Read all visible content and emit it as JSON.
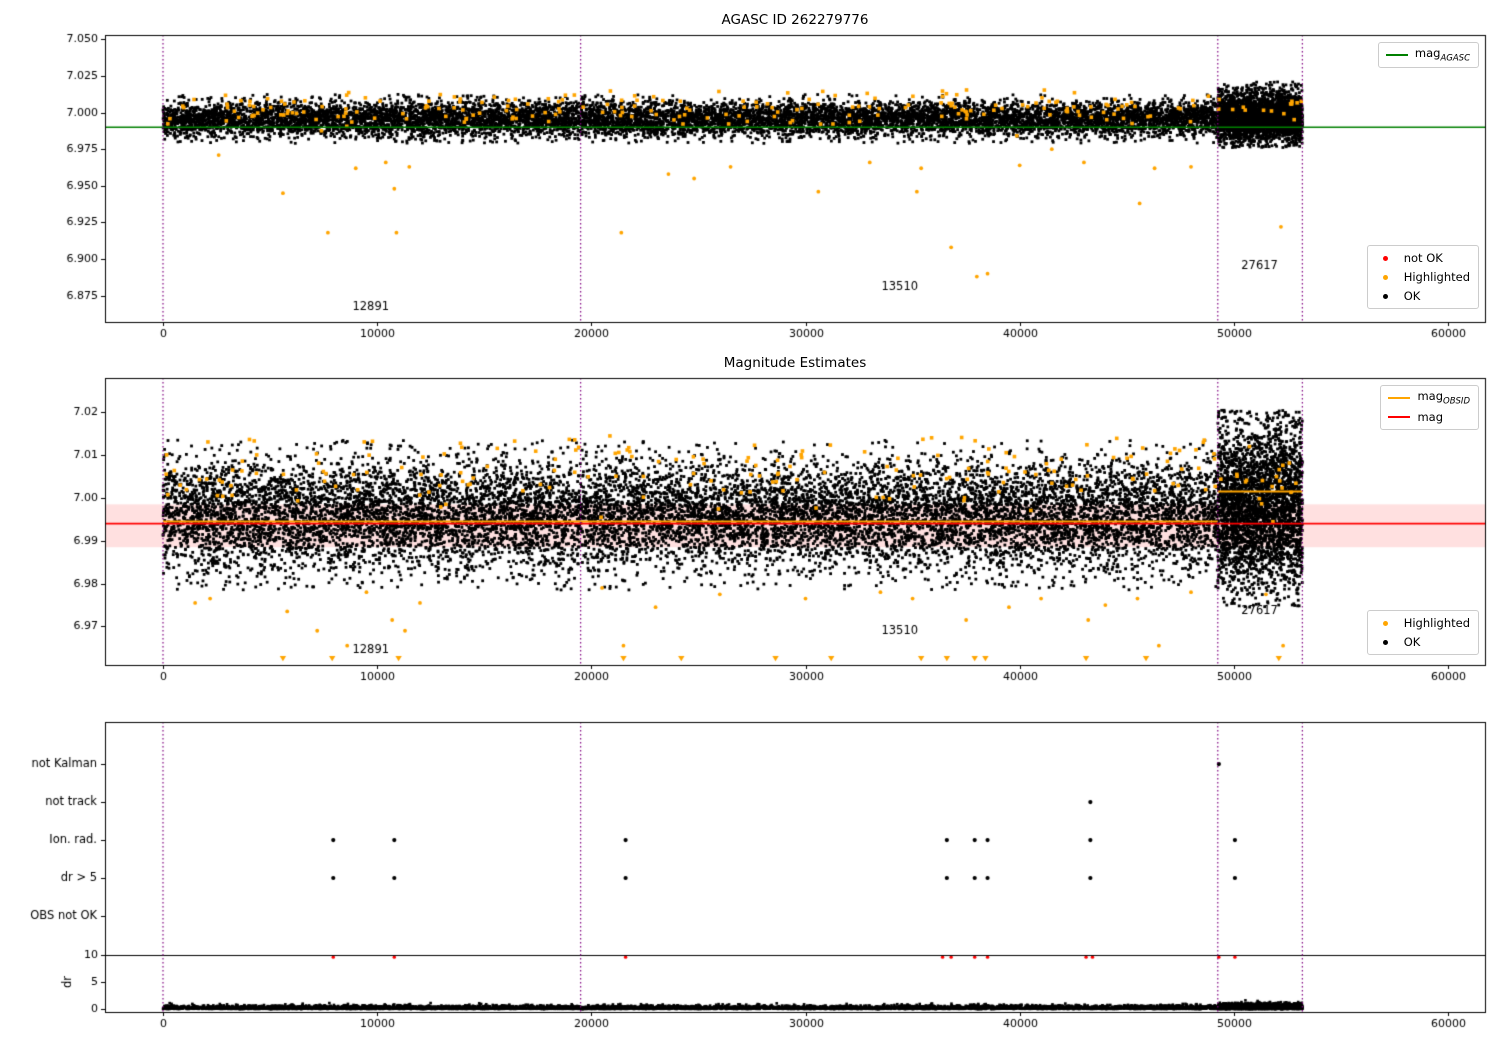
{
  "page": {
    "background": "#ffffff"
  },
  "chart_data": [
    {
      "type": "scatter",
      "title": "AGASC ID 262279776",
      "xlim": [
        -2708,
        61727
      ],
      "ylim": [
        6.857,
        7.053
      ],
      "xticks": [
        0,
        10000,
        20000,
        30000,
        40000,
        50000,
        60000
      ],
      "xtick_labels": [
        "0",
        "10000",
        "20000",
        "30000",
        "40000",
        "50000",
        "60000"
      ],
      "yticks": [
        7.05,
        7.025,
        7.0,
        6.975,
        6.95,
        6.925,
        6.9,
        6.875
      ],
      "ytick_labels": [
        "7.050",
        "7.025",
        "7.000",
        "6.975",
        "6.950",
        "6.925",
        "6.900",
        "6.875"
      ],
      "vlines": {
        "color": "#800080",
        "xs": [
          0,
          19500,
          49250,
          53200
        ]
      },
      "hline": {
        "y": 6.99,
        "color": "#008000",
        "width": 1.6
      },
      "clusters": [
        {
          "color": "#000000",
          "x0": 0,
          "x1": 49250,
          "n": 10000,
          "mean": 6.9955,
          "sd": 0.006,
          "min": 6.979,
          "max": 7.0125,
          "r": 1.4
        },
        {
          "color": "#000000",
          "x0": 49250,
          "x1": 53200,
          "n": 3000,
          "mean": 6.997,
          "sd": 0.0085,
          "min": 6.976,
          "max": 7.021,
          "r": 1.4
        },
        {
          "color": "#FFA500",
          "x0": 0,
          "x1": 53200,
          "n": 230,
          "mean": 7.003,
          "sd": 0.006,
          "min": 6.981,
          "max": 7.0155,
          "r": 1.8
        }
      ],
      "outliers": {
        "color": "#FFA500",
        "points": [
          [
            2600,
            6.971
          ],
          [
            5600,
            6.945
          ],
          [
            7700,
            6.918
          ],
          [
            9000,
            6.962
          ],
          [
            10400,
            6.966
          ],
          [
            10800,
            6.948
          ],
          [
            10900,
            6.918
          ],
          [
            11500,
            6.963
          ],
          [
            21400,
            6.918
          ],
          [
            23600,
            6.958
          ],
          [
            24800,
            6.955
          ],
          [
            26500,
            6.963
          ],
          [
            30600,
            6.946
          ],
          [
            33000,
            6.966
          ],
          [
            35200,
            6.946
          ],
          [
            35400,
            6.962
          ],
          [
            36800,
            6.908
          ],
          [
            38000,
            6.888
          ],
          [
            38500,
            6.89
          ],
          [
            40000,
            6.964
          ],
          [
            41500,
            6.975
          ],
          [
            43000,
            6.966
          ],
          [
            45600,
            6.938
          ],
          [
            46300,
            6.962
          ],
          [
            48000,
            6.963
          ],
          [
            52200,
            6.922
          ]
        ]
      },
      "annotations": [
        {
          "text": "12891",
          "x": 9700,
          "y": 6.867
        },
        {
          "text": "13510",
          "x": 34400,
          "y": 6.881
        },
        {
          "text": "27617",
          "x": 51200,
          "y": 6.895
        }
      ],
      "legend_line": {
        "pre": "mag",
        "sub": "AGASC",
        "color": "#008000"
      },
      "legend_markers": [
        {
          "label": "not OK",
          "color": "#ff0000"
        },
        {
          "label": "Highlighted",
          "color": "#FFA500"
        },
        {
          "label": "OK",
          "color": "#000000"
        }
      ]
    },
    {
      "type": "scatter",
      "title": "Magnitude Estimates",
      "xlim": [
        -2708,
        61727
      ],
      "ylim": [
        6.961,
        7.028
      ],
      "xticks": [
        0,
        10000,
        20000,
        30000,
        40000,
        50000,
        60000
      ],
      "xtick_labels": [
        "0",
        "10000",
        "20000",
        "30000",
        "40000",
        "50000",
        "60000"
      ],
      "yticks": [
        7.02,
        7.01,
        7.0,
        6.99,
        6.98,
        6.97
      ],
      "ytick_labels": [
        "7.02",
        "7.01",
        "7.00",
        "6.99",
        "6.98",
        "6.97"
      ],
      "vlines": {
        "color": "#800080",
        "xs": [
          0,
          19500,
          49250,
          53200
        ]
      },
      "band": {
        "y0": 6.9885,
        "y1": 6.9985,
        "color": "rgba(255,0,0,0.12)"
      },
      "hline": {
        "y": 6.994,
        "color": "#ff0000",
        "width": 1.6
      },
      "step_line": {
        "color": "#FFA500",
        "width": 2.2,
        "segments": [
          {
            "x0": 0,
            "x1": 19500,
            "y": 6.9945
          },
          {
            "x0": 19500,
            "x1": 49250,
            "y": 6.9945
          },
          {
            "x0": 49250,
            "x1": 53200,
            "y": 7.0015
          }
        ]
      },
      "clusters": [
        {
          "color": "#000000",
          "x0": 0,
          "x1": 49250,
          "n": 12000,
          "mean": 6.996,
          "sd": 0.0065,
          "min": 6.9785,
          "max": 7.0135,
          "r": 1.4
        },
        {
          "color": "#000000",
          "x0": 49250,
          "x1": 53200,
          "n": 3000,
          "mean": 6.998,
          "sd": 0.0095,
          "min": 6.9745,
          "max": 7.0205,
          "r": 1.4
        },
        {
          "color": "#FFA500",
          "x0": 0,
          "x1": 53200,
          "n": 200,
          "mean": 7.006,
          "sd": 0.0045,
          "min": 6.9935,
          "max": 7.0145,
          "r": 1.8
        }
      ],
      "outliers": {
        "color": "#FFA500",
        "points": [
          [
            1500,
            6.9755
          ],
          [
            2200,
            6.9765
          ],
          [
            5800,
            6.9735
          ],
          [
            7200,
            6.969
          ],
          [
            8600,
            6.9655
          ],
          [
            9500,
            6.978
          ],
          [
            10700,
            6.9715
          ],
          [
            11300,
            6.969
          ],
          [
            12000,
            6.9755
          ],
          [
            20500,
            6.979
          ],
          [
            21500,
            6.9655
          ],
          [
            23000,
            6.9745
          ],
          [
            26000,
            6.9775
          ],
          [
            30000,
            6.9765
          ],
          [
            33500,
            6.978
          ],
          [
            35000,
            6.9765
          ],
          [
            37500,
            6.9715
          ],
          [
            39500,
            6.9745
          ],
          [
            41000,
            6.9765
          ],
          [
            43200,
            6.9715
          ],
          [
            44000,
            6.975
          ],
          [
            45500,
            6.9765
          ],
          [
            46500,
            6.9655
          ],
          [
            48000,
            6.978
          ],
          [
            51500,
            6.9775
          ],
          [
            52300,
            6.9655
          ]
        ]
      },
      "triangles": {
        "color": "#FFA500",
        "y": 6.9625,
        "xs": [
          5600,
          7900,
          11000,
          21500,
          24200,
          28600,
          31200,
          35400,
          36600,
          37900,
          38400,
          43100,
          45900,
          52100
        ]
      },
      "annotations": [
        {
          "text": "12891",
          "x": 9700,
          "y": 6.9645
        },
        {
          "text": "13510",
          "x": 34400,
          "y": 6.969
        },
        {
          "text": "27617",
          "x": 51200,
          "y": 6.9737
        }
      ],
      "legend_lines": [
        {
          "pre": "mag",
          "sub": "OBSID",
          "color": "#FFA500"
        },
        {
          "pre": "mag",
          "sub": "",
          "color": "#ff0000"
        }
      ],
      "legend_markers": [
        {
          "label": "Highlighted",
          "color": "#FFA500"
        },
        {
          "label": "OK",
          "color": "#000000"
        }
      ]
    },
    {
      "type": "flags",
      "xlim": [
        -2708,
        61727
      ],
      "xticks": [
        0,
        10000,
        20000,
        30000,
        40000,
        50000,
        60000
      ],
      "xtick_labels": [
        "0",
        "10000",
        "20000",
        "30000",
        "40000",
        "50000",
        "60000"
      ],
      "vlines": {
        "color": "#800080",
        "xs": [
          0,
          19500,
          49250,
          53200
        ]
      },
      "rows": [
        {
          "label": "not Kalman",
          "xs": [
            49300
          ]
        },
        {
          "label": "not track",
          "xs": [
            43300
          ]
        },
        {
          "label": "Ion. rad.",
          "xs": [
            7950,
            10800,
            21600,
            36600,
            37900,
            38500,
            43300,
            50050
          ]
        },
        {
          "label": "dr > 5",
          "xs": [
            7950,
            10800,
            21600,
            36600,
            37900,
            38500,
            43300,
            50050
          ]
        },
        {
          "label": "OBS not OK",
          "xs": []
        }
      ],
      "dr": {
        "ylabel": "dr",
        "yticks": [
          10,
          5,
          0
        ],
        "ytick_labels": [
          "10",
          "5",
          "0"
        ],
        "hline_y": 10,
        "red_points": {
          "color": "#ff0000",
          "dr": 9.6,
          "xs": [
            7950,
            10800,
            21600,
            36400,
            36800,
            37900,
            38500,
            43100,
            43400,
            49300,
            50050
          ]
        },
        "bands": [
          {
            "x0": 0,
            "x1": 49250,
            "n": 5200,
            "scale": 0.32,
            "max": 1.1
          },
          {
            "x0": 49250,
            "x1": 53200,
            "n": 1700,
            "scale": 0.45,
            "max": 1.7
          }
        ]
      }
    }
  ]
}
